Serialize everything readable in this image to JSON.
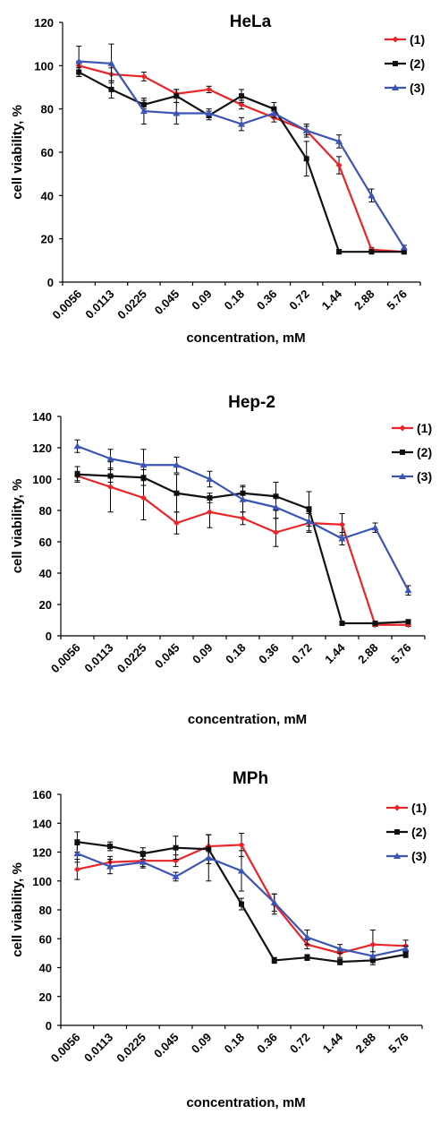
{
  "chart_data": [
    {
      "type": "line",
      "title": "HeLa",
      "xlabel": "concentration, mM",
      "ylabel": "cell viability, %",
      "ylim": [
        0,
        120
      ],
      "yticks": [
        0,
        20,
        40,
        60,
        80,
        100,
        120
      ],
      "categories": [
        "0.0056",
        "0.0113",
        "0.0225",
        "0.045",
        "0.09",
        "0.18",
        "0.36",
        "0.72",
        "1.44",
        "2.88",
        "5.76"
      ],
      "legend_position": "top-right",
      "grid": false,
      "series": [
        {
          "name": "(1)",
          "color": "#e8262a",
          "marker": "diamond",
          "values": [
            100,
            96,
            95,
            87,
            89,
            82,
            76,
            70,
            54,
            15,
            14
          ],
          "errors": [
            2,
            3,
            2,
            2,
            1.5,
            2,
            2,
            2,
            4,
            1,
            1
          ]
        },
        {
          "name": "(2)",
          "color": "#111111",
          "marker": "square",
          "values": [
            97,
            89,
            82,
            86,
            77,
            86,
            80,
            57,
            14,
            14,
            14
          ],
          "errors": [
            2,
            4,
            2,
            3,
            2,
            3,
            3,
            8,
            1,
            1,
            1
          ]
        },
        {
          "name": "(3)",
          "color": "#3c55b5",
          "marker": "triangle",
          "values": [
            102,
            101,
            79,
            78,
            78,
            73,
            78,
            70,
            65,
            40,
            16
          ],
          "errors": [
            7,
            9,
            6,
            5,
            2,
            3,
            2,
            3,
            3,
            3,
            1
          ]
        }
      ]
    },
    {
      "type": "line",
      "title": "Hep-2",
      "xlabel": "concentration, mM",
      "ylabel": "cell viability, %",
      "ylim": [
        0,
        140
      ],
      "yticks": [
        0,
        20,
        40,
        60,
        80,
        100,
        120,
        140
      ],
      "categories": [
        "0.0056",
        "0.0113",
        "0.0225",
        "0.045",
        "0.09",
        "0.18",
        "0.36",
        "0.72",
        "1.44",
        "2.88",
        "5.76"
      ],
      "legend_position": "top-right",
      "grid": false,
      "series": [
        {
          "name": "(1)",
          "color": "#e8262a",
          "marker": "diamond",
          "values": [
            102,
            95,
            88,
            72,
            79,
            75,
            66,
            72,
            71,
            7,
            7
          ],
          "errors": [
            3,
            16,
            14,
            7,
            10,
            4,
            9,
            6,
            7,
            1,
            1
          ]
        },
        {
          "name": "(2)",
          "color": "#111111",
          "marker": "square",
          "values": [
            103,
            102,
            101,
            91,
            88,
            91,
            89,
            81,
            8,
            8,
            9
          ],
          "errors": [
            5,
            4,
            5,
            12,
            3,
            5,
            9,
            11,
            1,
            1,
            1
          ]
        },
        {
          "name": "(3)",
          "color": "#3c55b5",
          "marker": "triangle",
          "values": [
            121,
            113,
            109,
            109,
            100,
            87,
            82,
            73,
            62,
            69,
            29
          ],
          "errors": [
            4,
            6,
            10,
            5,
            5,
            8,
            7,
            6,
            4,
            3,
            3
          ]
        }
      ]
    },
    {
      "type": "line",
      "title": "MPh",
      "xlabel": "concentration, mM",
      "ylabel": "cell viability, %",
      "ylim": [
        0,
        160
      ],
      "yticks": [
        0,
        20,
        40,
        60,
        80,
        100,
        120,
        140,
        160
      ],
      "categories": [
        "0.0056",
        "0.0113",
        "0.0225",
        "0.045",
        "0.09",
        "0.18",
        "0.36",
        "0.72",
        "1.44",
        "2.88",
        "5.76"
      ],
      "legend_position": "top-right",
      "grid": false,
      "series": [
        {
          "name": "(1)",
          "color": "#e8262a",
          "marker": "diamond",
          "values": [
            108,
            113,
            114,
            114,
            124,
            125,
            84,
            56,
            50,
            56,
            55
          ],
          "errors": [
            7,
            4,
            4,
            4,
            8,
            8,
            7,
            3,
            3,
            10,
            4
          ]
        },
        {
          "name": "(2)",
          "color": "#111111",
          "marker": "square",
          "values": [
            127,
            124,
            119,
            123,
            122,
            84,
            45,
            47,
            44,
            45,
            49
          ],
          "errors": [
            7,
            3,
            4,
            8,
            10,
            4,
            2,
            2,
            2,
            3,
            2
          ]
        },
        {
          "name": "(3)",
          "color": "#3c55b5",
          "marker": "triangle",
          "values": [
            119,
            110,
            113,
            103,
            116,
            107,
            85,
            61,
            53,
            48,
            53
          ],
          "errors": [
            6,
            5,
            4,
            3,
            16,
            14,
            6,
            5,
            3,
            3,
            2
          ]
        }
      ]
    }
  ]
}
